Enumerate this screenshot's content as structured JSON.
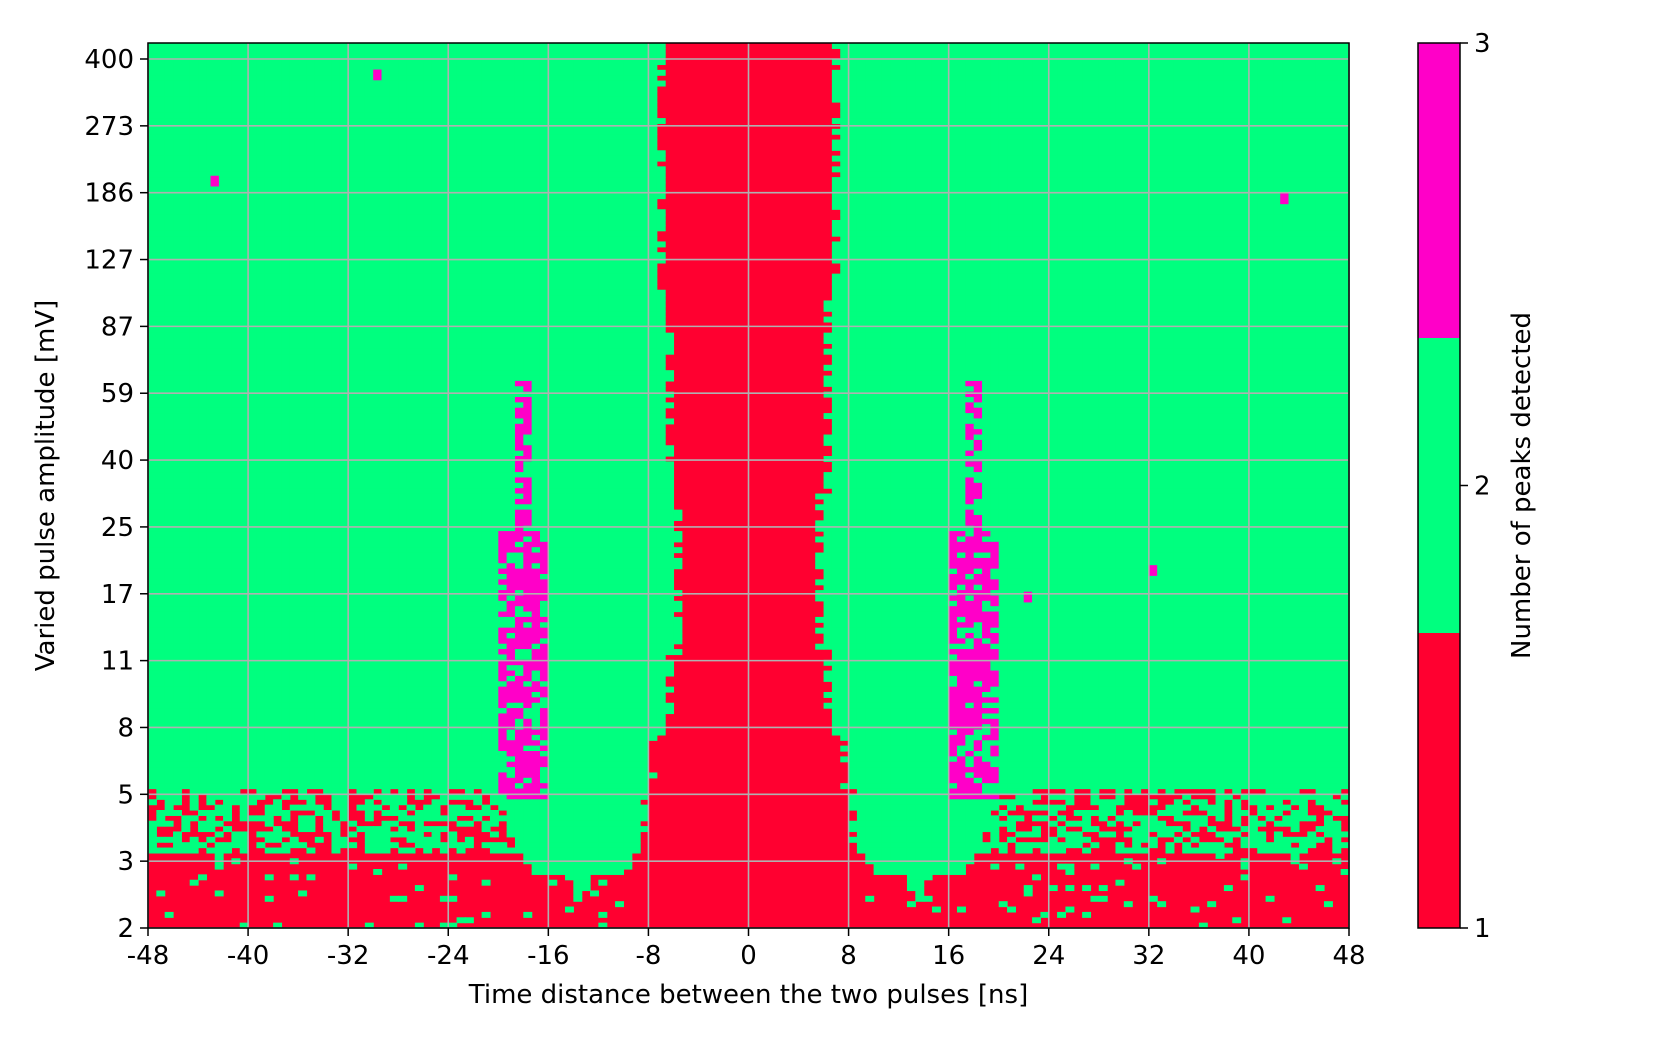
{
  "chart_data": {
    "type": "heatmap",
    "xlabel": "Time distance between the two pulses [ns]",
    "ylabel": "Varied pulse amplitude [mV]",
    "x_ticks": [
      "-48",
      "-40",
      "-32",
      "-24",
      "-16",
      "-8",
      "0",
      "8",
      "16",
      "24",
      "32",
      "40",
      "48"
    ],
    "x_range": [
      -48,
      48
    ],
    "y_ticks": [
      "2",
      "3",
      "5",
      "8",
      "11",
      "17",
      "25",
      "40",
      "59",
      "87",
      "127",
      "186",
      "273",
      "400"
    ],
    "y_scale": "log",
    "grid": true,
    "colorbar": {
      "label": "Number of peaks detected",
      "ticks": [
        "1",
        "2",
        "3"
      ],
      "categories": [
        {
          "value": 1,
          "color": "#ff0030"
        },
        {
          "value": 2,
          "color": "#00ff7f"
        },
        {
          "value": 3,
          "color": "#ff00c8"
        }
      ]
    },
    "regions": [
      {
        "description": "value 1 central band",
        "value": 1,
        "x_half_width_at_y": [
          [
            400,
            7
          ],
          [
            87,
            6.5
          ],
          [
            40,
            5.5
          ],
          [
            17,
            6
          ],
          [
            8,
            7.5
          ],
          [
            5,
            8.5
          ],
          [
            2,
            9
          ]
        ]
      },
      {
        "description": "value 1 below threshold",
        "value": 1,
        "y_max": 6.5
      },
      {
        "description": "value 2 valley around ±14 ns",
        "value": 2,
        "x_centers": [
          -14,
          14
        ],
        "y_min": 2
      }
    ],
    "clusters": [
      {
        "value": 3,
        "x_center": -18,
        "y_range": [
          8,
          70
        ]
      },
      {
        "value": 3,
        "x_center": 18,
        "y_range": [
          8,
          70
        ]
      }
    ]
  }
}
